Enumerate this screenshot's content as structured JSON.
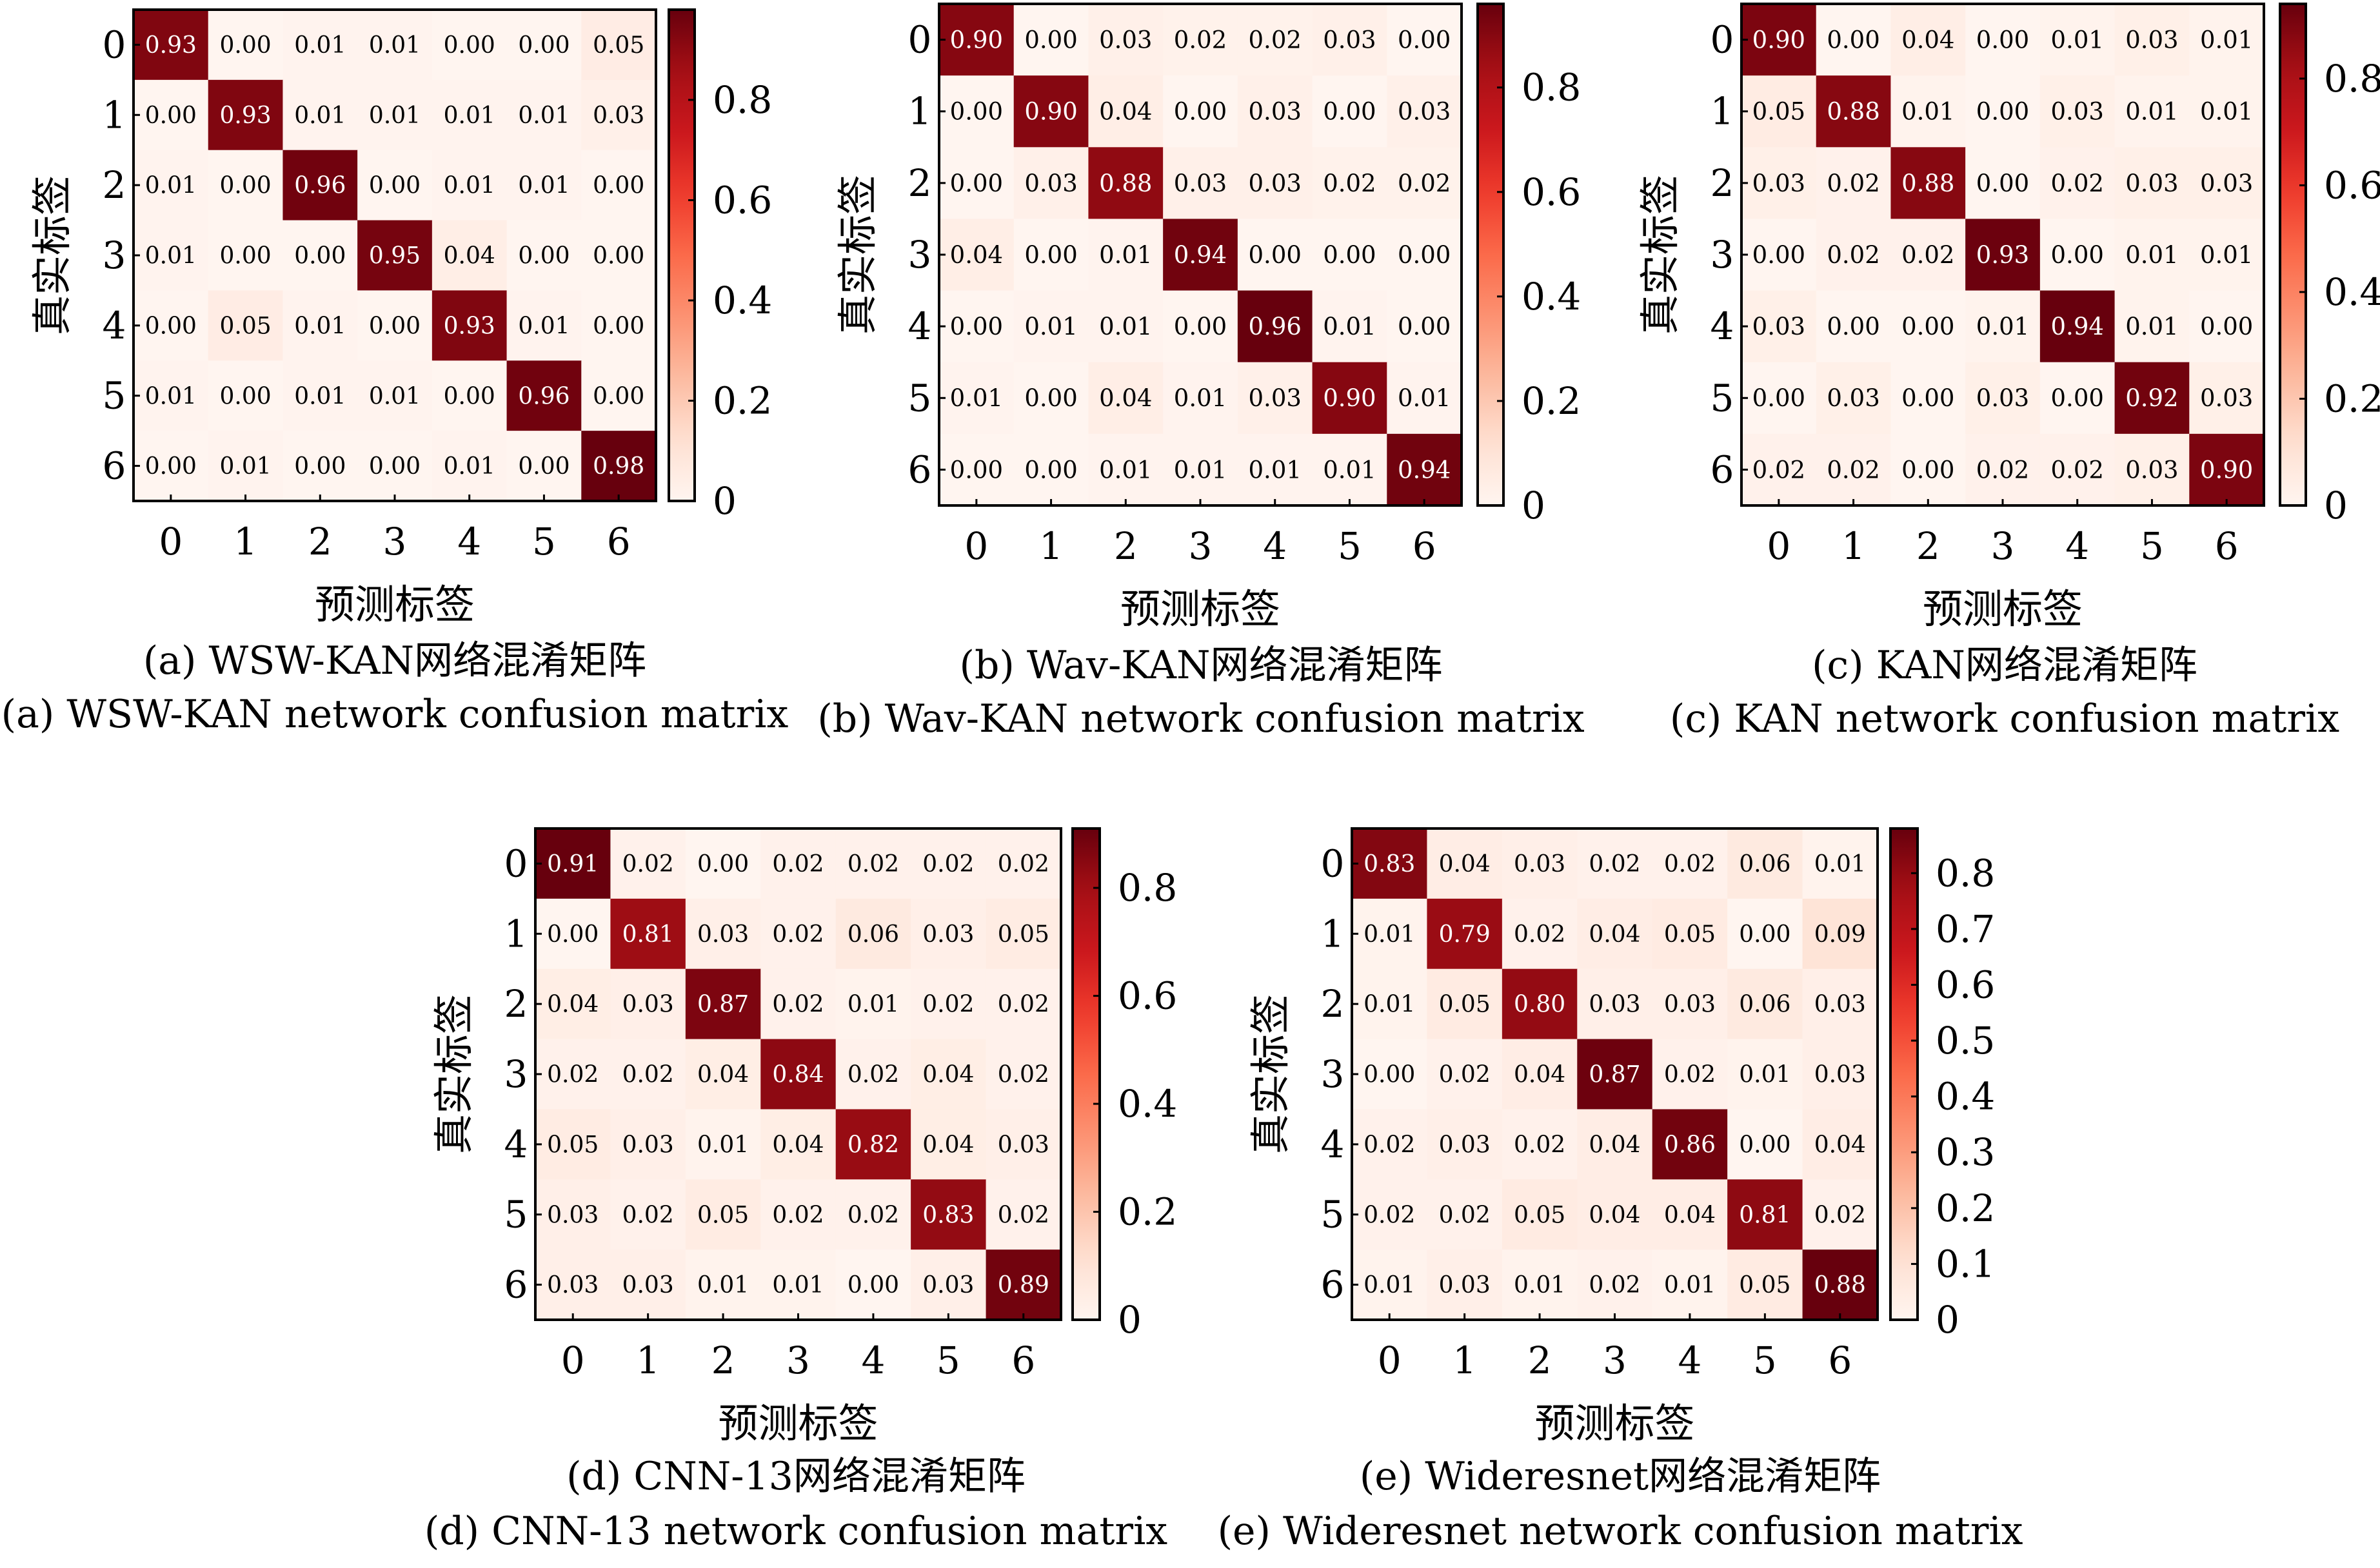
{
  "chart_data": [
    {
      "type": "heatmap",
      "title_cn": "(a) WSW-KAN网络混淆矩阵",
      "title_en": "(a) WSW-KAN network confusion matrix",
      "xlabel": "预测标签",
      "ylabel": "真实标签",
      "x_ticks": [
        "0",
        "1",
        "2",
        "3",
        "4",
        "5",
        "6"
      ],
      "y_ticks": [
        "0",
        "1",
        "2",
        "3",
        "4",
        "5",
        "6"
      ],
      "colorbar_ticks": [
        "0",
        "0.2",
        "0.4",
        "0.6",
        "0.8"
      ],
      "colorbar_values": [
        0,
        0.2,
        0.4,
        0.6,
        0.8
      ],
      "vmin": 0,
      "vmax": 0.98,
      "matrix": [
        [
          0.93,
          0.0,
          0.01,
          0.01,
          0.0,
          0.0,
          0.05
        ],
        [
          0.0,
          0.93,
          0.01,
          0.01,
          0.01,
          0.01,
          0.03
        ],
        [
          0.01,
          0.0,
          0.96,
          0.0,
          0.01,
          0.01,
          0.0
        ],
        [
          0.01,
          0.0,
          0.0,
          0.95,
          0.04,
          0.0,
          0.0
        ],
        [
          0.0,
          0.05,
          0.01,
          0.0,
          0.93,
          0.01,
          0.0
        ],
        [
          0.01,
          0.0,
          0.01,
          0.01,
          0.0,
          0.96,
          0.0
        ],
        [
          0.0,
          0.01,
          0.0,
          0.0,
          0.01,
          0.0,
          0.98
        ]
      ],
      "cell_labels": [
        [
          "0.93",
          "0.00",
          "0.01",
          "0.01",
          "0.00",
          "0.00",
          "0.05"
        ],
        [
          "0.00",
          "0.93",
          "0.01",
          "0.01",
          "0.01",
          "0.01",
          "0.03"
        ],
        [
          "0.01",
          "0.00",
          "0.96",
          "0.00",
          "0.01",
          "0.01",
          "0.00"
        ],
        [
          "0.01",
          "0.00",
          "0.00",
          "0.95",
          "0.04",
          "0.00",
          "0.00"
        ],
        [
          "0.00",
          "0.05",
          "0.01",
          "0.00",
          "0.93",
          "0.01",
          "0.00"
        ],
        [
          "0.01",
          "0.00",
          "0.01",
          "0.01",
          "0.00",
          "0.96",
          "0.00"
        ],
        [
          "0.00",
          "0.01",
          "0.00",
          "0.00",
          "0.01",
          "0.00",
          "0.98"
        ]
      ]
    },
    {
      "type": "heatmap",
      "title_cn": "(b) Wav-KAN网络混淆矩阵",
      "title_en": "(b) Wav-KAN network confusion matrix",
      "xlabel": "预测标签",
      "ylabel": "真实标签",
      "x_ticks": [
        "0",
        "1",
        "2",
        "3",
        "4",
        "5",
        "6"
      ],
      "y_ticks": [
        "0",
        "1",
        "2",
        "3",
        "4",
        "5",
        "6"
      ],
      "colorbar_ticks": [
        "0",
        "0.2",
        "0.4",
        "0.6",
        "0.8"
      ],
      "colorbar_values": [
        0,
        0.2,
        0.4,
        0.6,
        0.8
      ],
      "vmin": 0,
      "vmax": 0.96,
      "matrix": [
        [
          0.9,
          0.0,
          0.03,
          0.02,
          0.02,
          0.03,
          0.0
        ],
        [
          0.0,
          0.9,
          0.04,
          0.0,
          0.03,
          0.0,
          0.03
        ],
        [
          0.0,
          0.03,
          0.88,
          0.03,
          0.03,
          0.02,
          0.02
        ],
        [
          0.04,
          0.0,
          0.01,
          0.94,
          0.0,
          0.0,
          0.0
        ],
        [
          0.0,
          0.01,
          0.01,
          0.0,
          0.96,
          0.01,
          0.0
        ],
        [
          0.01,
          0.0,
          0.04,
          0.01,
          0.03,
          0.9,
          0.01
        ],
        [
          0.0,
          0.0,
          0.01,
          0.01,
          0.01,
          0.01,
          0.94
        ]
      ],
      "cell_labels": [
        [
          "0.90",
          "0.00",
          "0.03",
          "0.02",
          "0.02",
          "0.03",
          "0.00"
        ],
        [
          "0.00",
          "0.90",
          "0.04",
          "0.00",
          "0.03",
          "0.00",
          "0.03"
        ],
        [
          "0.00",
          "0.03",
          "0.88",
          "0.03",
          "0.03",
          "0.02",
          "0.02"
        ],
        [
          "0.04",
          "0.00",
          "0.01",
          "0.94",
          "0.00",
          "0.00",
          "0.00"
        ],
        [
          "0.00",
          "0.01",
          "0.01",
          "0.00",
          "0.96",
          "0.01",
          "0.00"
        ],
        [
          "0.01",
          "0.00",
          "0.04",
          "0.01",
          "0.03",
          "0.90",
          "0.01"
        ],
        [
          "0.00",
          "0.00",
          "0.01",
          "0.01",
          "0.01",
          "0.01",
          "0.94"
        ]
      ]
    },
    {
      "type": "heatmap",
      "title_cn": "(c) KAN网络混淆矩阵",
      "title_en": "(c) KAN network confusion matrix",
      "xlabel": "预测标签",
      "ylabel": "真实标签",
      "x_ticks": [
        "0",
        "1",
        "2",
        "3",
        "4",
        "5",
        "6"
      ],
      "y_ticks": [
        "0",
        "1",
        "2",
        "3",
        "4",
        "5",
        "6"
      ],
      "colorbar_ticks": [
        "0",
        "0.2",
        "0.4",
        "0.6",
        "0.8"
      ],
      "colorbar_values": [
        0,
        0.2,
        0.4,
        0.6,
        0.8
      ],
      "vmin": 0,
      "vmax": 0.94,
      "matrix": [
        [
          0.9,
          0.0,
          0.04,
          0.0,
          0.01,
          0.03,
          0.01
        ],
        [
          0.05,
          0.88,
          0.01,
          0.0,
          0.03,
          0.01,
          0.01
        ],
        [
          0.03,
          0.02,
          0.88,
          0.0,
          0.02,
          0.03,
          0.03
        ],
        [
          0.0,
          0.02,
          0.02,
          0.93,
          0.0,
          0.01,
          0.01
        ],
        [
          0.03,
          0.0,
          0.0,
          0.01,
          0.94,
          0.01,
          0.0
        ],
        [
          0.0,
          0.03,
          0.0,
          0.03,
          0.0,
          0.92,
          0.03
        ],
        [
          0.02,
          0.02,
          0.0,
          0.02,
          0.02,
          0.03,
          0.9
        ]
      ],
      "cell_labels": [
        [
          "0.90",
          "0.00",
          "0.04",
          "0.00",
          "0.01",
          "0.03",
          "0.01"
        ],
        [
          "0.05",
          "0.88",
          "0.01",
          "0.00",
          "0.03",
          "0.01",
          "0.01"
        ],
        [
          "0.03",
          "0.02",
          "0.88",
          "0.00",
          "0.02",
          "0.03",
          "0.03"
        ],
        [
          "0.00",
          "0.02",
          "0.02",
          "0.93",
          "0.00",
          "0.01",
          "0.01"
        ],
        [
          "0.03",
          "0.00",
          "0.00",
          "0.01",
          "0.94",
          "0.01",
          "0.00"
        ],
        [
          "0.00",
          "0.03",
          "0.00",
          "0.03",
          "0.00",
          "0.92",
          "0.03"
        ],
        [
          "0.02",
          "0.02",
          "0.00",
          "0.02",
          "0.02",
          "0.03",
          "0.90"
        ]
      ]
    },
    {
      "type": "heatmap",
      "title_cn": "(d) CNN-13网络混淆矩阵",
      "title_en": "(d) CNN-13 network confusion matrix",
      "xlabel": "预测标签",
      "ylabel": "真实标签",
      "x_ticks": [
        "0",
        "1",
        "2",
        "3",
        "4",
        "5",
        "6"
      ],
      "y_ticks": [
        "0",
        "1",
        "2",
        "3",
        "4",
        "5",
        "6"
      ],
      "colorbar_ticks": [
        "0",
        "0.2",
        "0.4",
        "0.6",
        "0.8"
      ],
      "colorbar_values": [
        0,
        0.2,
        0.4,
        0.6,
        0.8
      ],
      "vmin": 0,
      "vmax": 0.91,
      "matrix": [
        [
          0.91,
          0.02,
          0.0,
          0.02,
          0.02,
          0.02,
          0.02
        ],
        [
          0.0,
          0.81,
          0.03,
          0.02,
          0.06,
          0.03,
          0.05
        ],
        [
          0.04,
          0.03,
          0.87,
          0.02,
          0.01,
          0.02,
          0.02
        ],
        [
          0.02,
          0.02,
          0.04,
          0.84,
          0.02,
          0.04,
          0.02
        ],
        [
          0.05,
          0.03,
          0.01,
          0.04,
          0.82,
          0.04,
          0.03
        ],
        [
          0.03,
          0.02,
          0.05,
          0.02,
          0.02,
          0.83,
          0.02
        ],
        [
          0.03,
          0.03,
          0.01,
          0.01,
          0.0,
          0.03,
          0.89
        ]
      ],
      "cell_labels": [
        [
          "0.91",
          "0.02",
          "0.00",
          "0.02",
          "0.02",
          "0.02",
          "0.02"
        ],
        [
          "0.00",
          "0.81",
          "0.03",
          "0.02",
          "0.06",
          "0.03",
          "0.05"
        ],
        [
          "0.04",
          "0.03",
          "0.87",
          "0.02",
          "0.01",
          "0.02",
          "0.02"
        ],
        [
          "0.02",
          "0.02",
          "0.04",
          "0.84",
          "0.02",
          "0.04",
          "0.02"
        ],
        [
          "0.05",
          "0.03",
          "0.01",
          "0.04",
          "0.82",
          "0.04",
          "0.03"
        ],
        [
          "0.03",
          "0.02",
          "0.05",
          "0.02",
          "0.02",
          "0.83",
          "0.02"
        ],
        [
          "0.03",
          "0.03",
          "0.01",
          "0.01",
          "0.00",
          "0.03",
          "0.89"
        ]
      ]
    },
    {
      "type": "heatmap",
      "title_cn": "(e) Wideresnet网络混淆矩阵",
      "title_en": "(e) Wideresnet network confusion matrix",
      "xlabel": "预测标签",
      "ylabel": "真实标签",
      "x_ticks": [
        "0",
        "1",
        "2",
        "3",
        "4",
        "5",
        "6"
      ],
      "y_ticks": [
        "0",
        "1",
        "2",
        "3",
        "4",
        "5",
        "6"
      ],
      "colorbar_ticks": [
        "0",
        "0.1",
        "0.2",
        "0.3",
        "0.4",
        "0.5",
        "0.6",
        "0.7",
        "0.8"
      ],
      "colorbar_values": [
        0,
        0.1,
        0.2,
        0.3,
        0.4,
        0.5,
        0.6,
        0.7,
        0.8
      ],
      "vmin": 0,
      "vmax": 0.88,
      "matrix": [
        [
          0.83,
          0.04,
          0.03,
          0.02,
          0.02,
          0.06,
          0.01
        ],
        [
          0.01,
          0.79,
          0.02,
          0.04,
          0.05,
          0.0,
          0.09
        ],
        [
          0.01,
          0.05,
          0.8,
          0.03,
          0.03,
          0.06,
          0.03
        ],
        [
          0.0,
          0.02,
          0.04,
          0.87,
          0.02,
          0.01,
          0.03
        ],
        [
          0.02,
          0.03,
          0.02,
          0.04,
          0.86,
          0.0,
          0.04
        ],
        [
          0.02,
          0.02,
          0.05,
          0.04,
          0.04,
          0.81,
          0.02
        ],
        [
          0.01,
          0.03,
          0.01,
          0.02,
          0.01,
          0.05,
          0.88
        ]
      ],
      "cell_labels": [
        [
          "0.83",
          "0.04",
          "0.03",
          "0.02",
          "0.02",
          "0.06",
          "0.01"
        ],
        [
          "0.01",
          "0.79",
          "0.02",
          "0.04",
          "0.05",
          "0.00",
          "0.09"
        ],
        [
          "0.01",
          "0.05",
          "0.80",
          "0.03",
          "0.03",
          "0.06",
          "0.03"
        ],
        [
          "0.00",
          "0.02",
          "0.04",
          "0.87",
          "0.02",
          "0.01",
          "0.03"
        ],
        [
          "0.02",
          "0.03",
          "0.02",
          "0.04",
          "0.86",
          "0.00",
          "0.04"
        ],
        [
          "0.02",
          "0.02",
          "0.05",
          "0.04",
          "0.04",
          "0.81",
          "0.02"
        ],
        [
          "0.01",
          "0.03",
          "0.01",
          "0.02",
          "0.01",
          "0.05",
          "0.88"
        ]
      ]
    }
  ],
  "colormap": {
    "name": "Reds",
    "stops": [
      "#fff5f0",
      "#fee0d2",
      "#fcbba1",
      "#fc9272",
      "#fb6a4a",
      "#ef3b2c",
      "#cb181d",
      "#a50f15",
      "#67000d"
    ]
  }
}
